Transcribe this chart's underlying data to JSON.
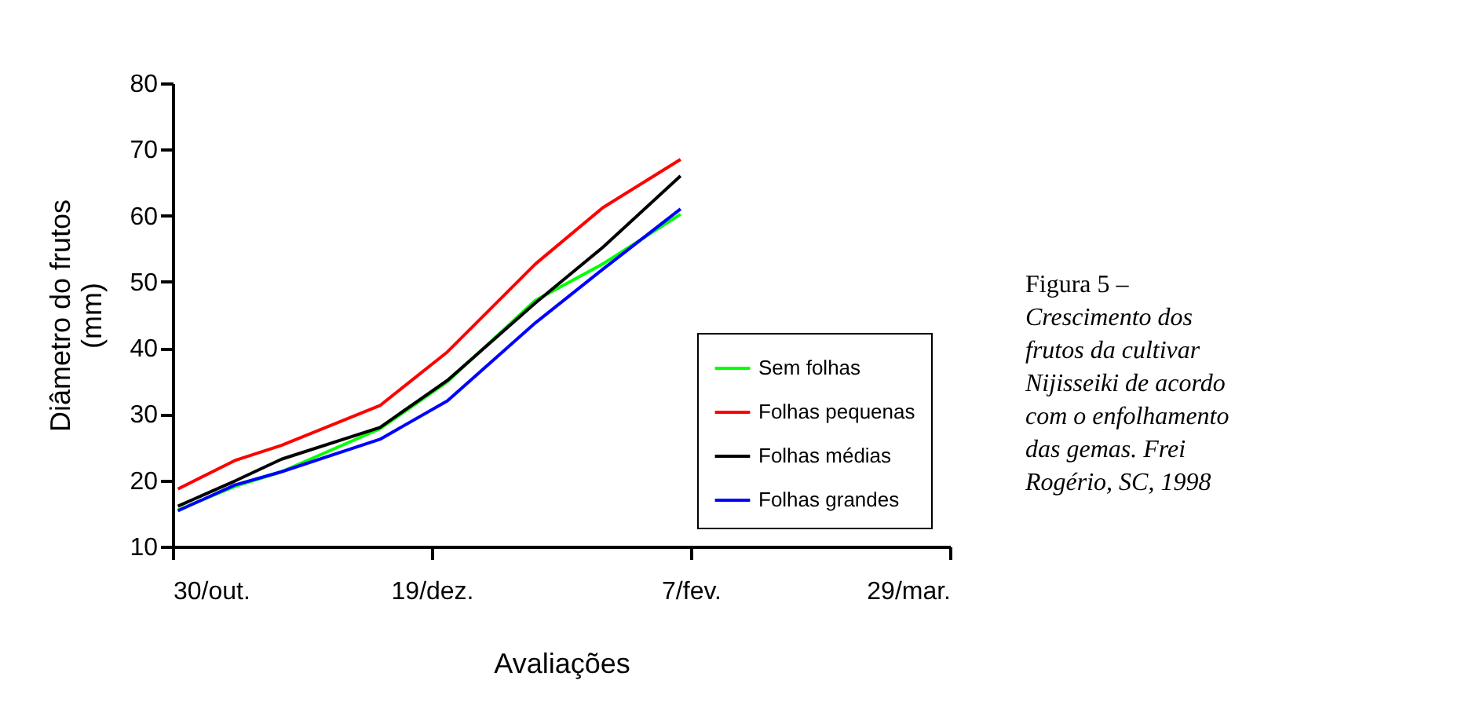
{
  "chart_data": {
    "type": "line",
    "xlabel": "Avaliações",
    "ylabel": "Diâmetro do frutos\n(mm)",
    "x": [
      "1997-10-31",
      "1997-11-11",
      "1997-11-20",
      "1997-12-09",
      "1997-12-22",
      "1998-01-08",
      "1998-01-21",
      "1998-02-05"
    ],
    "series": [
      {
        "name": "Sem folhas",
        "color": "#00ff00",
        "values": [
          15.5,
          19.1,
          21.3,
          27.8,
          34.9,
          47.2,
          52.7,
          60.2
        ]
      },
      {
        "name": "Folhas pequenas",
        "color": "#ff0000",
        "values": [
          18.7,
          23.0,
          25.3,
          31.3,
          39.4,
          52.7,
          61.2,
          68.5
        ]
      },
      {
        "name": "Folhas médias",
        "color": "#000000",
        "values": [
          16.1,
          19.9,
          23.2,
          28.0,
          35.1,
          46.8,
          55.2,
          66.0
        ]
      },
      {
        "name": "Folhas grandes",
        "color": "#0000ff",
        "values": [
          15.4,
          19.3,
          21.3,
          26.2,
          32.0,
          43.8,
          51.9,
          61.0
        ]
      }
    ],
    "xlim": [
      "1997-10-30",
      "1998-03-29"
    ],
    "xticks": [
      {
        "value": "1997-10-30",
        "label": "30/out."
      },
      {
        "value": "1997-12-19",
        "label": "19/dez."
      },
      {
        "value": "1998-02-07",
        "label": "7/fev."
      },
      {
        "value": "1998-03-29",
        "label": "29/mar."
      }
    ],
    "ylim": [
      10,
      80
    ],
    "yticks": [
      10,
      20,
      30,
      40,
      50,
      60,
      70,
      80
    ],
    "grid": false,
    "legend": "bottom right",
    "marker": "none",
    "line_style": "solid",
    "annotations": [
      "Figura 5 –",
      "Crescimento dos frutos da cultivar Nijisseiki de acordo com o enfolhamento das gemas. Frei Rogério, SC, 1998"
    ]
  }
}
